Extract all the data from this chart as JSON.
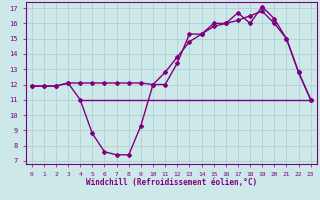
{
  "xlabel": "Windchill (Refroidissement éolien,°C)",
  "xlim": [
    -0.5,
    23.5
  ],
  "ylim": [
    6.8,
    17.4
  ],
  "yticks": [
    7,
    8,
    9,
    10,
    11,
    12,
    13,
    14,
    15,
    16,
    17
  ],
  "xticks": [
    0,
    1,
    2,
    3,
    4,
    5,
    6,
    7,
    8,
    9,
    10,
    11,
    12,
    13,
    14,
    15,
    16,
    17,
    18,
    19,
    20,
    21,
    22,
    23
  ],
  "bg_color": "#cce8e8",
  "line_color": "#800080",
  "grid_color": "#aacccc",
  "windchill_x": [
    0,
    1,
    2,
    3,
    4,
    5,
    6,
    7,
    8,
    9,
    10,
    11,
    12,
    13,
    14,
    15,
    16,
    17,
    18,
    19,
    20,
    21,
    22,
    23
  ],
  "windchill_y": [
    11.9,
    11.9,
    11.9,
    12.1,
    11.0,
    8.8,
    7.6,
    7.4,
    7.4,
    9.3,
    12.0,
    12.0,
    13.4,
    15.3,
    15.3,
    16.0,
    16.0,
    16.7,
    16.0,
    17.1,
    16.3,
    15.0,
    12.8,
    11.0
  ],
  "temp_x": [
    0,
    1,
    2,
    3,
    4,
    5,
    6,
    7,
    8,
    9,
    10,
    11,
    12,
    13,
    14,
    15,
    16,
    17,
    18,
    19,
    20,
    21,
    22,
    23
  ],
  "temp_y": [
    11.9,
    11.9,
    11.9,
    12.1,
    12.1,
    12.1,
    12.1,
    12.1,
    12.1,
    12.1,
    12.0,
    12.8,
    13.8,
    14.8,
    15.3,
    15.8,
    16.0,
    16.2,
    16.5,
    16.8,
    16.0,
    15.0,
    12.8,
    11.0
  ],
  "flat_y": 11.0,
  "flat_x_start": 4,
  "flat_x_end": 23
}
